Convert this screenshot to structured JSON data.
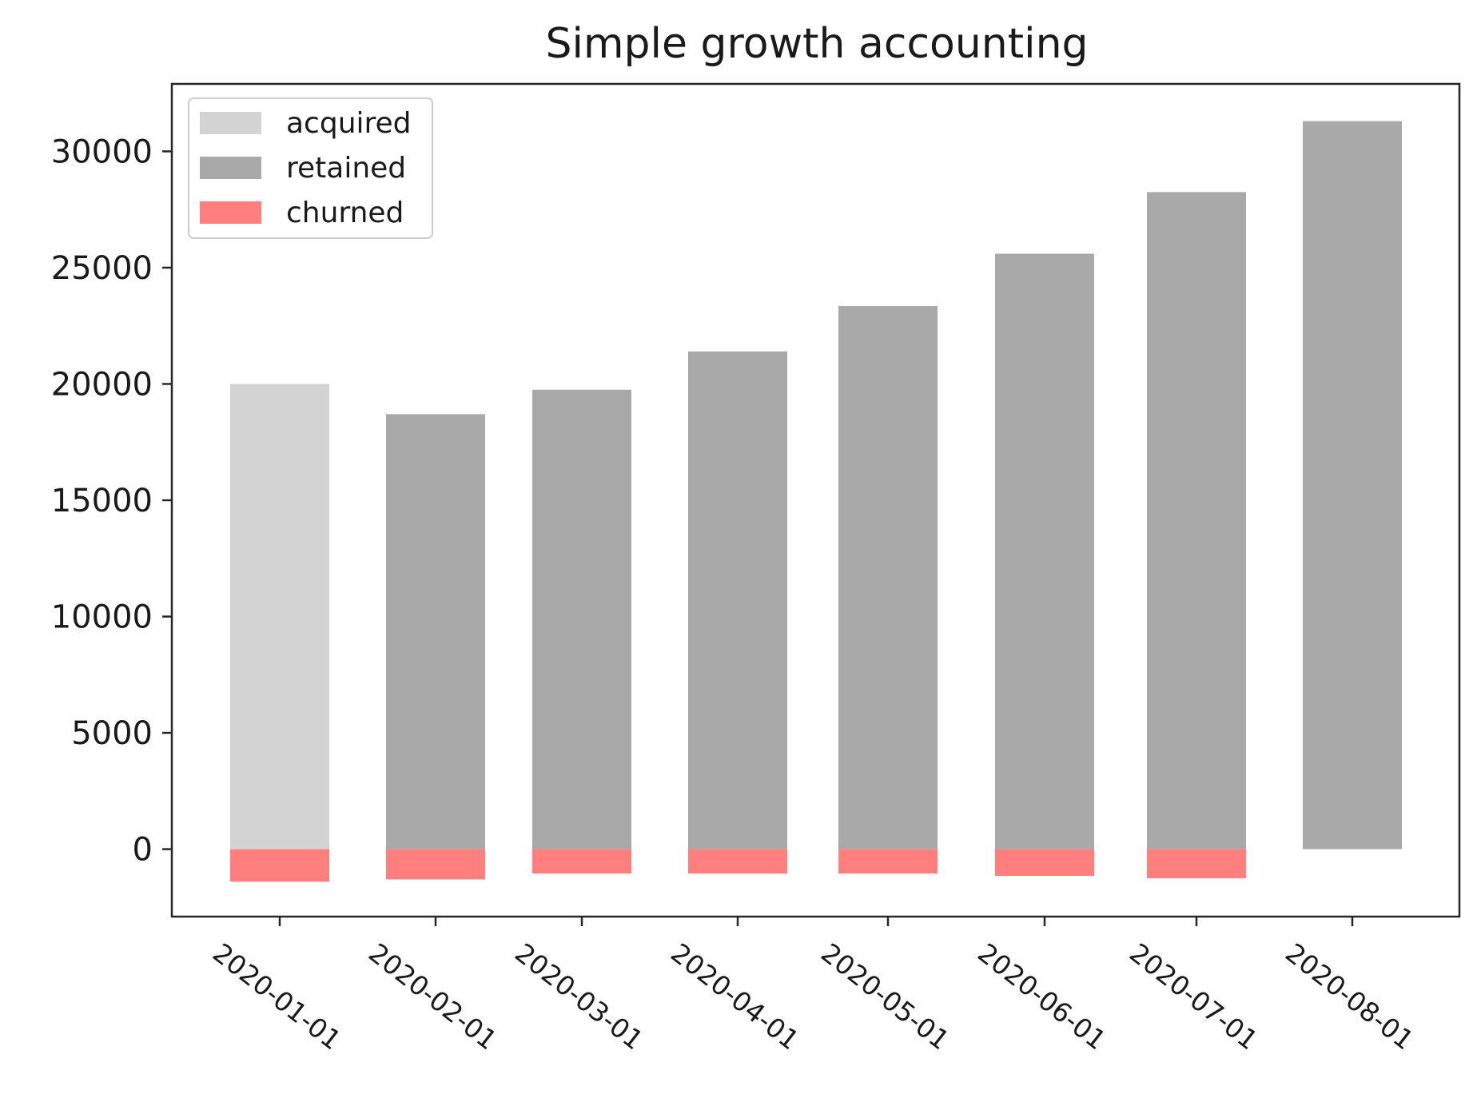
{
  "chart_data": {
    "type": "bar",
    "title": "Simple growth accounting",
    "xlabel": "",
    "ylabel": "",
    "categories": [
      "2020-01-01",
      "2020-02-01",
      "2020-03-01",
      "2020-04-01",
      "2020-05-01",
      "2020-06-01",
      "2020-07-01",
      "2020-08-01"
    ],
    "series": [
      {
        "name": "acquired",
        "color": "#d3d3d3",
        "values": [
          20000,
          0,
          0,
          0,
          0,
          0,
          0,
          0
        ]
      },
      {
        "name": "retained",
        "color": "#a9a9a9",
        "values": [
          0,
          18700,
          19750,
          21400,
          23350,
          25600,
          28250,
          31300
        ]
      },
      {
        "name": "churned",
        "color": "#ff7f7f",
        "values": [
          -1400,
          -1300,
          -1050,
          -1050,
          -1050,
          -1150,
          -1250,
          0
        ]
      }
    ],
    "ylim": [
      -2900,
      32900
    ],
    "yticks": [
      0,
      5000,
      10000,
      15000,
      20000,
      25000,
      30000
    ],
    "grid": false,
    "legend": "top-left"
  }
}
